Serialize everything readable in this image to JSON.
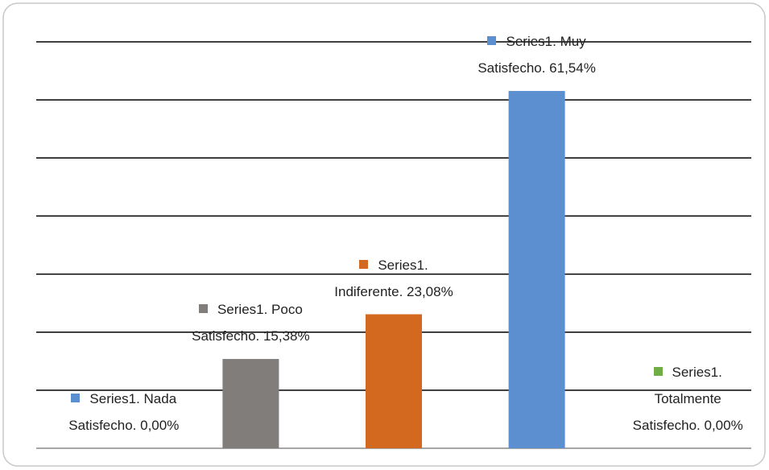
{
  "chart_data": {
    "type": "bar",
    "series": [
      {
        "name": "Series1",
        "values": [
          0,
          15.38,
          23.08,
          61.54,
          0
        ],
        "value_labels": [
          "Series1. Nada Satisfecho. 0,00%",
          "Series1. Poco Satisfecho. 15,38%",
          "Series1. Indiferente. 23,08%",
          "Series1. Muy Satisfecho. 61,54%",
          "Series1. Totalmente Satisfecho. 0,00%"
        ],
        "colors": [
          "#5b8fd0",
          "#807d7a",
          "#d2691e",
          "#5b8fd0",
          "#70ad47"
        ]
      }
    ],
    "ylim": [
      0,
      70
    ],
    "yticks": [
      0,
      10,
      20,
      30,
      40,
      50,
      60,
      70
    ],
    "grid": true
  }
}
